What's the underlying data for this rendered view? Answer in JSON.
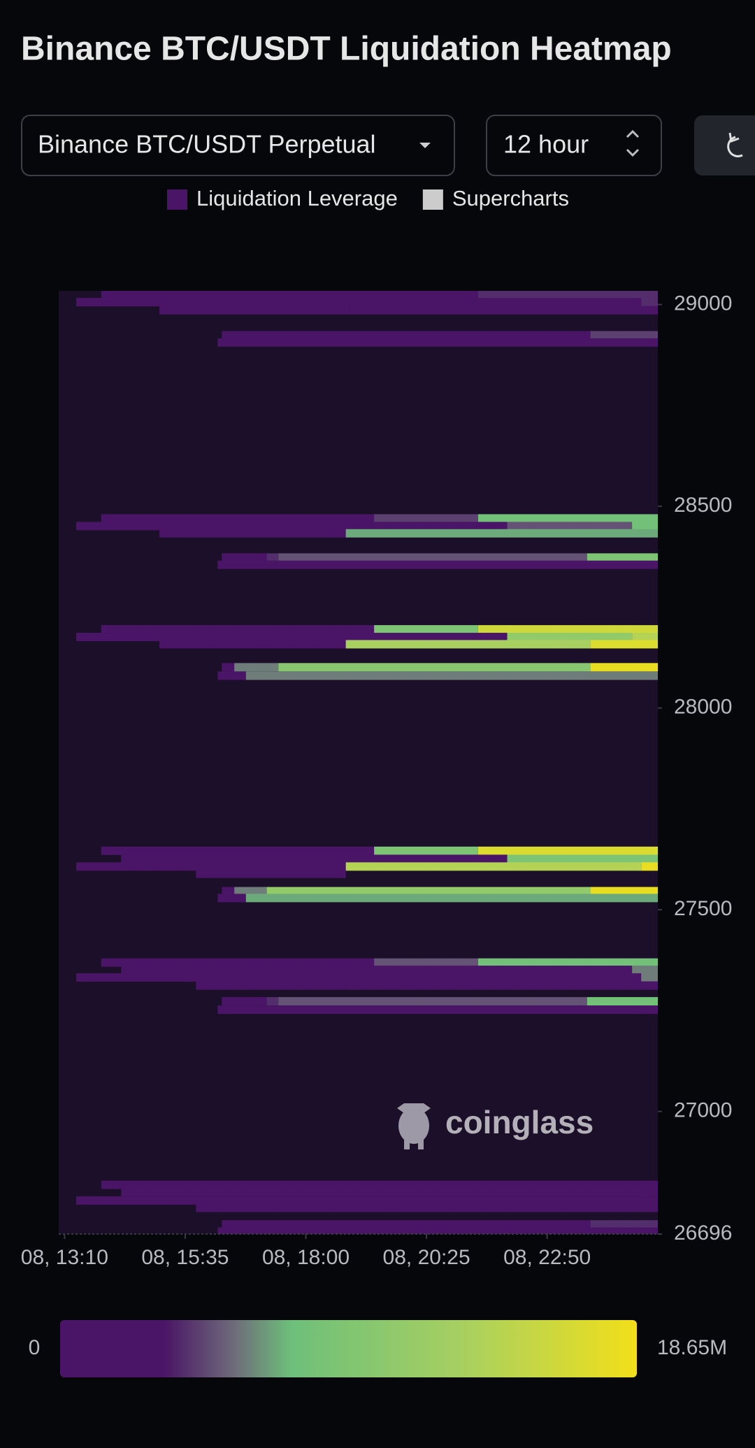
{
  "header": {
    "title": "Binance BTC/USDT Liquidation Heatmap"
  },
  "controls": {
    "market": "Binance BTC/USDT Perpetual",
    "interval": "12 hour"
  },
  "chart_data": {
    "type": "heatmap",
    "legend": [
      {
        "name": "Liquidation Leverage",
        "color": "#4a1566"
      },
      {
        "name": "Supercharts",
        "color": "#cccccc"
      }
    ],
    "xlim": [
      783,
      1503
    ],
    "xticks": [
      {
        "value": 790,
        "label": "08, 13:10"
      },
      {
        "value": 935,
        "label": "08, 15:35"
      },
      {
        "value": 1080,
        "label": "08, 18:00"
      },
      {
        "value": 1225,
        "label": "08, 20:25"
      },
      {
        "value": 1370,
        "label": "08, 22:50"
      }
    ],
    "ylim": [
      26696,
      29034
    ],
    "yticks": [
      29000,
      28500,
      28000,
      27500,
      27000,
      26696
    ],
    "colorscale": [
      [
        0,
        "#4a1566"
      ],
      [
        0.18,
        "#4a1566"
      ],
      [
        0.3,
        "#6e6a7a"
      ],
      [
        0.4,
        "#6dbf7b"
      ],
      [
        0.7,
        "#a8d060"
      ],
      [
        1,
        "#f2df1a"
      ]
    ],
    "colorbar": {
      "min": 0,
      "max": {
        "value": 18.65,
        "label": "18.65M"
      }
    },
    "watermark": "coinglass",
    "cells": [
      {
        "y": 29025,
        "x0": 834,
        "x1": 1287,
        "v": 1.5
      },
      {
        "y": 29025,
        "x0": 1287,
        "x1": 1503,
        "v": 4
      },
      {
        "y": 29006,
        "x0": 804,
        "x1": 1132,
        "v": 1.5
      },
      {
        "y": 29006,
        "x0": 1132,
        "x1": 1483,
        "v": 3
      },
      {
        "y": 29006,
        "x0": 1483,
        "x1": 1503,
        "v": 4
      },
      {
        "y": 28986,
        "x0": 904,
        "x1": 1132,
        "v": 1.5
      },
      {
        "y": 28986,
        "x0": 1132,
        "x1": 1503,
        "v": 3
      },
      {
        "y": 28924,
        "x0": 979,
        "x1": 1422,
        "v": 1.5
      },
      {
        "y": 28924,
        "x0": 1422,
        "x1": 1503,
        "v": 4.5
      },
      {
        "y": 28906,
        "x0": 974,
        "x1": 1503,
        "v": 1.5
      },
      {
        "y": 28470,
        "x0": 834,
        "x1": 1162,
        "v": 1.5
      },
      {
        "y": 28470,
        "x0": 1162,
        "x1": 1287,
        "v": 4.5
      },
      {
        "y": 28470,
        "x0": 1287,
        "x1": 1503,
        "v": 8
      },
      {
        "y": 28451,
        "x0": 804,
        "x1": 1322,
        "v": 1.5
      },
      {
        "y": 28451,
        "x0": 1322,
        "x1": 1472,
        "v": 5
      },
      {
        "y": 28451,
        "x0": 1472,
        "x1": 1503,
        "v": 8
      },
      {
        "y": 28433,
        "x0": 904,
        "x1": 1128,
        "v": 1.5
      },
      {
        "y": 28433,
        "x0": 1128,
        "x1": 1503,
        "v": 7
      },
      {
        "y": 28373,
        "x0": 979,
        "x1": 1033,
        "v": 1.5
      },
      {
        "y": 28373,
        "x0": 1033,
        "x1": 1047,
        "v": 4
      },
      {
        "y": 28373,
        "x0": 1047,
        "x1": 1418,
        "v": 5
      },
      {
        "y": 28373,
        "x0": 1418,
        "x1": 1503,
        "v": 9
      },
      {
        "y": 28355,
        "x0": 974,
        "x1": 1503,
        "v": 1.5
      },
      {
        "y": 28195,
        "x0": 834,
        "x1": 1162,
        "v": 1.5
      },
      {
        "y": 28195,
        "x0": 1162,
        "x1": 1287,
        "v": 9
      },
      {
        "y": 28195,
        "x0": 1287,
        "x1": 1503,
        "v": 16
      },
      {
        "y": 28176,
        "x0": 804,
        "x1": 1322,
        "v": 1.5
      },
      {
        "y": 28176,
        "x0": 1322,
        "x1": 1472,
        "v": 11
      },
      {
        "y": 28176,
        "x0": 1472,
        "x1": 1503,
        "v": 14
      },
      {
        "y": 28158,
        "x0": 904,
        "x1": 1128,
        "v": 1.5
      },
      {
        "y": 28158,
        "x0": 1128,
        "x1": 1422,
        "v": 13
      },
      {
        "y": 28158,
        "x0": 1422,
        "x1": 1503,
        "v": 17
      },
      {
        "y": 28101,
        "x0": 979,
        "x1": 994,
        "v": 3
      },
      {
        "y": 28101,
        "x0": 994,
        "x1": 1047,
        "v": 6
      },
      {
        "y": 28101,
        "x0": 1047,
        "x1": 1422,
        "v": 10
      },
      {
        "y": 28101,
        "x0": 1422,
        "x1": 1503,
        "v": 18
      },
      {
        "y": 28080,
        "x0": 974,
        "x1": 1008,
        "v": 3
      },
      {
        "y": 28080,
        "x0": 1008,
        "x1": 1503,
        "v": 6
      },
      {
        "y": 27646,
        "x0": 834,
        "x1": 1162,
        "v": 1.5
      },
      {
        "y": 27646,
        "x0": 1162,
        "x1": 1287,
        "v": 9
      },
      {
        "y": 27646,
        "x0": 1287,
        "x1": 1503,
        "v": 17
      },
      {
        "y": 27626,
        "x0": 858,
        "x1": 1322,
        "v": 1.5
      },
      {
        "y": 27626,
        "x0": 1322,
        "x1": 1503,
        "v": 9
      },
      {
        "y": 27607,
        "x0": 804,
        "x1": 1128,
        "v": 1.5
      },
      {
        "y": 27607,
        "x0": 1128,
        "x1": 1483,
        "v": 14
      },
      {
        "y": 27607,
        "x0": 1483,
        "x1": 1503,
        "v": 18
      },
      {
        "y": 27589,
        "x0": 948,
        "x1": 1128,
        "v": 1.5
      },
      {
        "y": 27546,
        "x0": 979,
        "x1": 994,
        "v": 3
      },
      {
        "y": 27546,
        "x0": 994,
        "x1": 1033,
        "v": 6
      },
      {
        "y": 27546,
        "x0": 1033,
        "x1": 1422,
        "v": 11
      },
      {
        "y": 27546,
        "x0": 1422,
        "x1": 1503,
        "v": 18
      },
      {
        "y": 27529,
        "x0": 974,
        "x1": 1008,
        "v": 3
      },
      {
        "y": 27529,
        "x0": 1008,
        "x1": 1503,
        "v": 7
      },
      {
        "y": 27369,
        "x0": 834,
        "x1": 1162,
        "v": 1.5
      },
      {
        "y": 27369,
        "x0": 1162,
        "x1": 1287,
        "v": 5
      },
      {
        "y": 27369,
        "x0": 1287,
        "x1": 1503,
        "v": 8
      },
      {
        "y": 27351,
        "x0": 858,
        "x1": 1472,
        "v": 1.5
      },
      {
        "y": 27351,
        "x0": 1472,
        "x1": 1503,
        "v": 6
      },
      {
        "y": 27332,
        "x0": 804,
        "x1": 1132,
        "v": 1.5
      },
      {
        "y": 27332,
        "x0": 1132,
        "x1": 1483,
        "v": 3
      },
      {
        "y": 27332,
        "x0": 1483,
        "x1": 1503,
        "v": 6
      },
      {
        "y": 27312,
        "x0": 948,
        "x1": 1128,
        "v": 1.5
      },
      {
        "y": 27312,
        "x0": 1128,
        "x1": 1503,
        "v": 3
      },
      {
        "y": 27273,
        "x0": 979,
        "x1": 1033,
        "v": 1.5
      },
      {
        "y": 27273,
        "x0": 1033,
        "x1": 1047,
        "v": 4
      },
      {
        "y": 27273,
        "x0": 1047,
        "x1": 1418,
        "v": 5
      },
      {
        "y": 27273,
        "x0": 1418,
        "x1": 1503,
        "v": 8
      },
      {
        "y": 27252,
        "x0": 974,
        "x1": 1503,
        "v": 1.5
      },
      {
        "y": 26818,
        "x0": 834,
        "x1": 1503,
        "v": 1.5
      },
      {
        "y": 26800,
        "x0": 858,
        "x1": 1503,
        "v": 1.5
      },
      {
        "y": 26779,
        "x0": 804,
        "x1": 1483,
        "v": 1.5
      },
      {
        "y": 26779,
        "x0": 1483,
        "x1": 1503,
        "v": 3
      },
      {
        "y": 26761,
        "x0": 948,
        "x1": 1503,
        "v": 1.5
      },
      {
        "y": 26720,
        "x0": 979,
        "x1": 1422,
        "v": 1.5
      },
      {
        "y": 26720,
        "x0": 1422,
        "x1": 1503,
        "v": 4
      },
      {
        "y": 26702,
        "x0": 974,
        "x1": 1503,
        "v": 1.5
      }
    ]
  }
}
